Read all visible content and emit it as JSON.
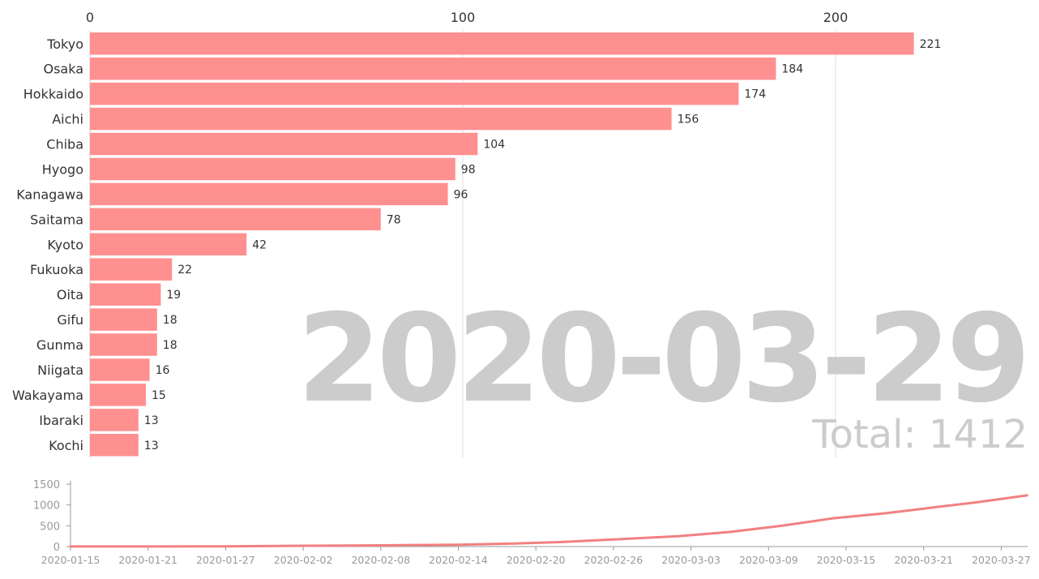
{
  "overlay": {
    "date": "2020-03-29",
    "total": "Total: 1412"
  },
  "chart_data": [
    {
      "type": "bar",
      "orientation": "horizontal",
      "axis_position": "top",
      "categories": [
        "Tokyo",
        "Osaka",
        "Hokkaido",
        "Aichi",
        "Chiba",
        "Hyogo",
        "Kanagawa",
        "Saitama",
        "Kyoto",
        "Fukuoka",
        "Oita",
        "Gifu",
        "Gunma",
        "Niigata",
        "Wakayama",
        "Ibaraki",
        "Kochi"
      ],
      "values": [
        221,
        184,
        174,
        156,
        104,
        98,
        96,
        78,
        42,
        22,
        19,
        18,
        18,
        16,
        15,
        13,
        13
      ],
      "xlim": [
        0,
        240
      ],
      "xticks": [
        0,
        100,
        200
      ],
      "grid": true,
      "bar_color": "#ff9090"
    },
    {
      "type": "line",
      "x": [
        "2020-01-15",
        "2020-01-21",
        "2020-01-27",
        "2020-02-02",
        "2020-02-08",
        "2020-02-14",
        "2020-02-18",
        "2020-02-22",
        "2020-02-26",
        "2020-03-02",
        "2020-03-06",
        "2020-03-10",
        "2020-03-14",
        "2020-03-18",
        "2020-03-22",
        "2020-03-25",
        "2020-03-29"
      ],
      "values": [
        1,
        2,
        5,
        20,
        30,
        45,
        70,
        110,
        170,
        250,
        350,
        500,
        680,
        800,
        950,
        1060,
        1230
      ],
      "xticks": [
        "2020-01-15",
        "2020-01-21",
        "2020-01-27",
        "2020-02-02",
        "2020-02-08",
        "2020-02-14",
        "2020-02-20",
        "2020-02-26",
        "2020-03-03",
        "2020-03-09",
        "2020-03-15",
        "2020-03-21",
        "2020-03-27"
      ],
      "yticks": [
        0,
        500,
        1000,
        1500
      ],
      "ylim": [
        0,
        1600
      ],
      "line_color": "#f28080"
    }
  ]
}
